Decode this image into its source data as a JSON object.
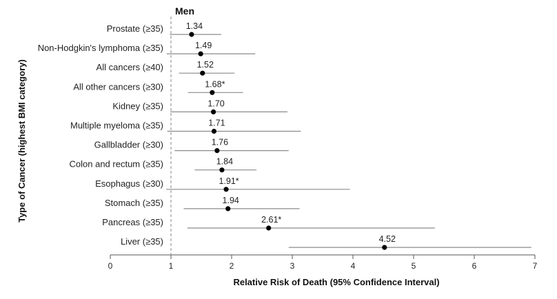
{
  "chart_data": {
    "type": "forest",
    "title": "Men",
    "xlabel": "Relative Risk of Death (95% Confidence Interval)",
    "ylabel": "Type of Cancer (highest BMI category)",
    "xlim": [
      0,
      7
    ],
    "xticks": [
      0,
      1,
      2,
      3,
      4,
      5,
      6,
      7
    ],
    "reference_line": 1,
    "rows": [
      {
        "category": "Prostate (≥35)",
        "value": 1.34,
        "label": "1.34",
        "ci_low": 0.98,
        "ci_high": 1.83
      },
      {
        "category": "Non-Hodgkin's lymphoma (≥35)",
        "value": 1.49,
        "label": "1.49",
        "ci_low": 0.93,
        "ci_high": 2.39
      },
      {
        "category": "All cancers (≥40)",
        "value": 1.52,
        "label": "1.52",
        "ci_low": 1.13,
        "ci_high": 2.05
      },
      {
        "category": "All other cancers (≥30)",
        "value": 1.68,
        "label": "1.68*",
        "ci_low": 1.28,
        "ci_high": 2.19
      },
      {
        "category": "Kidney (≥35)",
        "value": 1.7,
        "label": "1.70",
        "ci_low": 0.99,
        "ci_high": 2.92
      },
      {
        "category": "Multiple myeloma (≥35)",
        "value": 1.71,
        "label": "1.71",
        "ci_low": 0.94,
        "ci_high": 3.14
      },
      {
        "category": "Gallbladder (≥30)",
        "value": 1.76,
        "label": "1.76",
        "ci_low": 1.06,
        "ci_high": 2.94
      },
      {
        "category": "Colon and rectum (≥35)",
        "value": 1.84,
        "label": "1.84",
        "ci_low": 1.39,
        "ci_high": 2.41
      },
      {
        "category": "Esophagus (≥30)",
        "value": 1.91,
        "label": "1.91*",
        "ci_low": 0.92,
        "ci_high": 3.95
      },
      {
        "category": "Stomach (≥35)",
        "value": 1.94,
        "label": "1.94",
        "ci_low": 1.21,
        "ci_high": 3.12
      },
      {
        "category": "Pancreas (≥35)",
        "value": 2.61,
        "label": "2.61*",
        "ci_low": 1.27,
        "ci_high": 5.35
      },
      {
        "category": "Liver (≥35)",
        "value": 4.52,
        "label": "4.52",
        "ci_low": 2.94,
        "ci_high": 6.94
      }
    ]
  }
}
